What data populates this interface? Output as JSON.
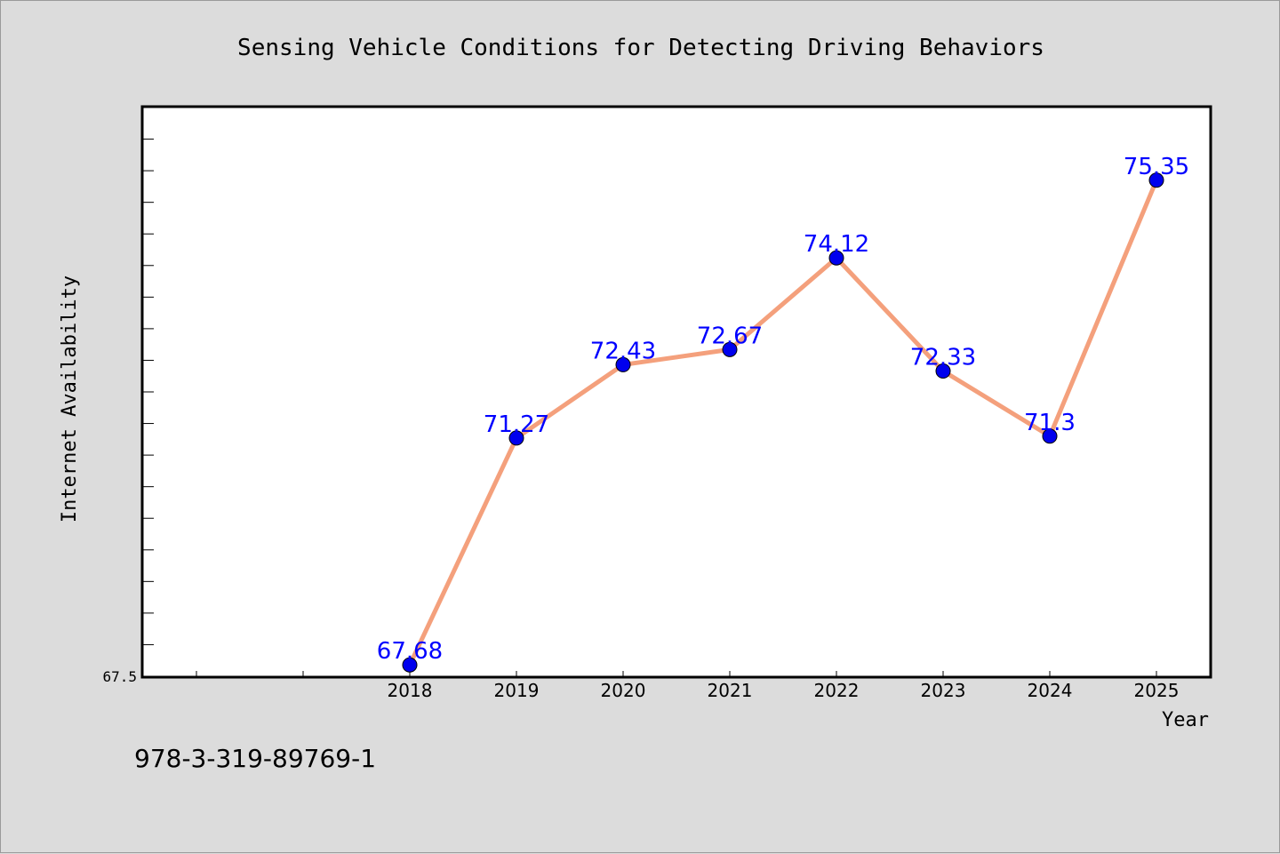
{
  "chart_data": {
    "type": "line",
    "title": "Sensing Vehicle Conditions for Detecting Driving Behaviors",
    "xlabel": "Year",
    "ylabel": "Internet Availability",
    "x": [
      "2018",
      "2019",
      "2020",
      "2021",
      "2022",
      "2023",
      "2024",
      "2025"
    ],
    "series": [
      {
        "values": [
          67.68,
          71.27,
          72.43,
          72.67,
          74.12,
          72.33,
          71.3,
          75.35
        ]
      }
    ],
    "data_labels": [
      "67.68",
      "71.27",
      "72.43",
      "72.67",
      "74.12",
      "72.33",
      "71.3",
      "75.35"
    ],
    "ylim": [
      67.5,
      76.5
    ],
    "y_tick_labels": [
      "67.5"
    ],
    "grid": false,
    "legend": "none",
    "colors": {
      "line": "#f4a07c",
      "marker": "#0000ee",
      "data_label": "#0000ff",
      "plot_background": "#ffffff",
      "page_background": "#dcdcdc"
    }
  },
  "footer_text": "978-3-319-89769-1"
}
